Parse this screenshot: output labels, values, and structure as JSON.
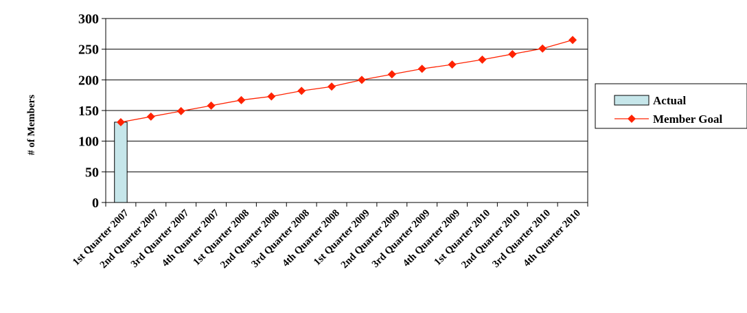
{
  "chart_data": {
    "type": "bar",
    "title": "",
    "xlabel": "",
    "ylabel": "# of Members",
    "ylim": [
      0,
      300
    ],
    "yticks": [
      0,
      50,
      100,
      150,
      200,
      250,
      300
    ],
    "grid": true,
    "legend_position": "right",
    "categories": [
      "1st Quarter 2007",
      "2nd Quarter 2007",
      "3rd Quarter 2007",
      "4th Quarter 2007",
      "1st Quarter 2008",
      "2nd Quarter 2008",
      "3rd Quarter 2008",
      "4th Quarter 2008",
      "1st Quarter 2009",
      "2nd Quarter 2009",
      "3rd Quarter 2009",
      "4th Quarter 2009",
      "1st Quarter 2010",
      "2nd Quarter 2010",
      "3rd Quarter 2010",
      "4th Quarter 2010"
    ],
    "series": [
      {
        "name": "Actual",
        "kind": "bar",
        "color": "#C6E6EA",
        "values": [
          131,
          null,
          null,
          null,
          null,
          null,
          null,
          null,
          null,
          null,
          null,
          null,
          null,
          null,
          null,
          null
        ]
      },
      {
        "name": "Member Goal",
        "kind": "line",
        "color": "#FF2200",
        "values": [
          131,
          140,
          149,
          158,
          167,
          173,
          182,
          189,
          200,
          209,
          218,
          225,
          233,
          242,
          251,
          265
        ]
      }
    ]
  }
}
